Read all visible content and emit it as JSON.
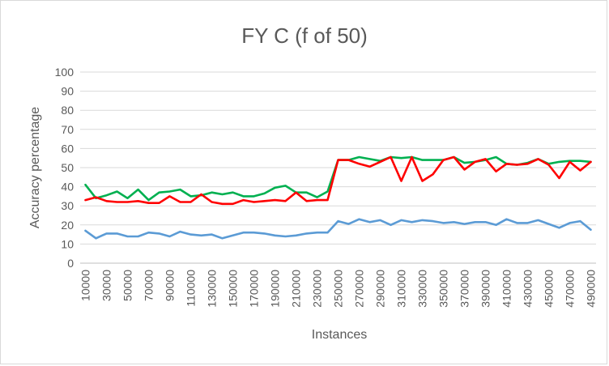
{
  "chart_data": {
    "type": "line",
    "title": "FY C (f of 50)",
    "xlabel": "Instances",
    "ylabel": "Accuracy percentage",
    "ylim": [
      0,
      100
    ],
    "yticks": [
      0,
      10,
      20,
      30,
      40,
      50,
      60,
      70,
      80,
      90,
      100
    ],
    "x": [
      10000,
      20000,
      30000,
      40000,
      50000,
      60000,
      70000,
      80000,
      90000,
      100000,
      110000,
      120000,
      130000,
      140000,
      150000,
      160000,
      170000,
      180000,
      190000,
      200000,
      210000,
      220000,
      230000,
      240000,
      250000,
      260000,
      270000,
      280000,
      290000,
      300000,
      310000,
      320000,
      330000,
      340000,
      350000,
      360000,
      370000,
      380000,
      390000,
      400000,
      410000,
      420000,
      430000,
      440000,
      450000,
      460000,
      470000,
      480000,
      490000
    ],
    "xtick_labels": [
      "10000",
      "30000",
      "50000",
      "70000",
      "90000",
      "110000",
      "130000",
      "150000",
      "170000",
      "190000",
      "210000",
      "230000",
      "250000",
      "270000",
      "290000",
      "310000",
      "330000",
      "350000",
      "370000",
      "390000",
      "410000",
      "430000",
      "450000",
      "470000",
      "490000"
    ],
    "grid": true,
    "legend": "none",
    "series": [
      {
        "color": "#00b050",
        "values": [
          41,
          34,
          35.5,
          37.5,
          34,
          38.5,
          33,
          37,
          37.5,
          38.5,
          35,
          35.5,
          37,
          36,
          37,
          35,
          35,
          36.5,
          39.5,
          40.5,
          37,
          37,
          34.5,
          37.5,
          54,
          54,
          55.5,
          54.5,
          53.5,
          55.5,
          55,
          55.5,
          54,
          54,
          54,
          55.5,
          52.5,
          53,
          54,
          55.5,
          52,
          51.5,
          52.5,
          54.5,
          52,
          53,
          53.5,
          53.5,
          53
        ]
      },
      {
        "color": "#ff0000",
        "values": [
          33,
          34.5,
          32.5,
          32,
          32,
          32.5,
          31.5,
          31.5,
          35,
          32,
          32,
          36,
          32,
          31,
          31,
          33,
          32,
          32.5,
          33,
          32.5,
          37,
          32.5,
          33,
          33,
          54,
          54,
          52,
          50.5,
          53,
          55.5,
          43,
          55.5,
          43,
          46.5,
          54,
          55.5,
          49,
          53,
          54.5,
          48,
          52,
          51.5,
          52,
          54.5,
          51.5,
          44.5,
          53,
          48.5,
          53
        ]
      },
      {
        "color": "#5b9bd5",
        "values": [
          17,
          13,
          15.5,
          15.5,
          14,
          14,
          16,
          15.5,
          14,
          16.5,
          15,
          14.5,
          15,
          13,
          14.5,
          16,
          16,
          15.5,
          14.5,
          14,
          14.5,
          15.5,
          16,
          16,
          22,
          20.5,
          23,
          21.5,
          22.5,
          20,
          22.5,
          21.5,
          22.5,
          22,
          21,
          21.5,
          20.5,
          21.5,
          21.5,
          20,
          23,
          21,
          21,
          22.5,
          20.5,
          18.5,
          21,
          22,
          17.5
        ]
      }
    ]
  }
}
